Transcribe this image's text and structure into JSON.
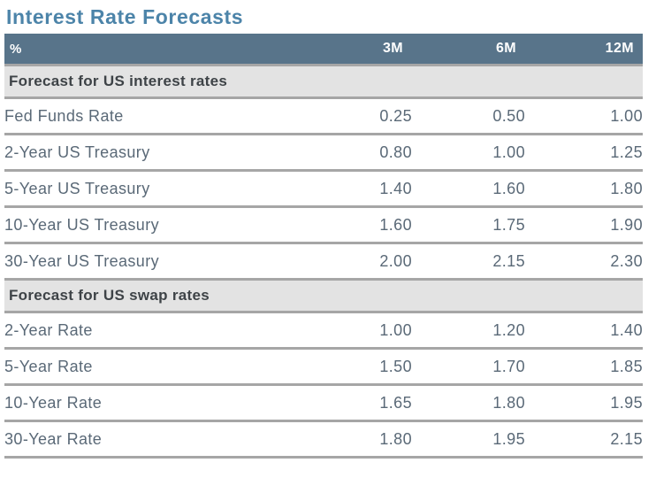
{
  "title": "Interest Rate Forecasts",
  "colors": {
    "title_text": "#4C84A9",
    "header_bg": "#58748A",
    "header_text": "#FFFFFF",
    "section_bg": "#E3E3E3",
    "section_text": "#3E4347",
    "row_text": "#5A6977",
    "divider": "#A6A6A6",
    "background": "#FFFFFF"
  },
  "table": {
    "columns": {
      "unit": "%",
      "h3m": "3M",
      "h6m": "6M",
      "h12m": "12M"
    },
    "sections": [
      {
        "label": "Forecast for US interest rates",
        "rows": [
          {
            "label": "Fed Funds Rate",
            "values": [
              "0.25",
              "0.50",
              "1.00"
            ]
          },
          {
            "label": "2-Year US Treasury",
            "values": [
              "0.80",
              "1.00",
              "1.25"
            ]
          },
          {
            "label": "5-Year US Treasury",
            "values": [
              "1.40",
              "1.60",
              "1.80"
            ]
          },
          {
            "label": "10-Year US Treasury",
            "values": [
              "1.60",
              "1.75",
              "1.90"
            ]
          },
          {
            "label": "30-Year US Treasury",
            "values": [
              "2.00",
              "2.15",
              "2.30"
            ]
          }
        ]
      },
      {
        "label": "Forecast for US swap rates",
        "rows": [
          {
            "label": "2-Year Rate",
            "values": [
              "1.00",
              "1.20",
              "1.40"
            ]
          },
          {
            "label": "5-Year Rate",
            "values": [
              "1.50",
              "1.70",
              "1.85"
            ]
          },
          {
            "label": "10-Year Rate",
            "values": [
              "1.65",
              "1.80",
              "1.95"
            ]
          },
          {
            "label": "30-Year Rate",
            "values": [
              "1.80",
              "1.95",
              "2.15"
            ]
          }
        ]
      }
    ]
  },
  "chart_data": {
    "type": "table",
    "title": "Interest Rate Forecasts",
    "unit": "%",
    "columns": [
      "3M",
      "6M",
      "12M"
    ],
    "sections": [
      {
        "name": "Forecast for US interest rates",
        "rows": [
          {
            "name": "Fed Funds Rate",
            "values": [
              0.25,
              0.5,
              1.0
            ]
          },
          {
            "name": "2-Year US Treasury",
            "values": [
              0.8,
              1.0,
              1.25
            ]
          },
          {
            "name": "5-Year US Treasury",
            "values": [
              1.4,
              1.6,
              1.8
            ]
          },
          {
            "name": "10-Year US Treasury",
            "values": [
              1.6,
              1.75,
              1.9
            ]
          },
          {
            "name": "30-Year US Treasury",
            "values": [
              2.0,
              2.15,
              2.3
            ]
          }
        ]
      },
      {
        "name": "Forecast for US swap rates",
        "rows": [
          {
            "name": "2-Year Rate",
            "values": [
              1.0,
              1.2,
              1.4
            ]
          },
          {
            "name": "5-Year Rate",
            "values": [
              1.5,
              1.7,
              1.85
            ]
          },
          {
            "name": "10-Year Rate",
            "values": [
              1.65,
              1.8,
              1.95
            ]
          },
          {
            "name": "30-Year Rate",
            "values": [
              1.8,
              1.95,
              2.15
            ]
          }
        ]
      }
    ]
  }
}
